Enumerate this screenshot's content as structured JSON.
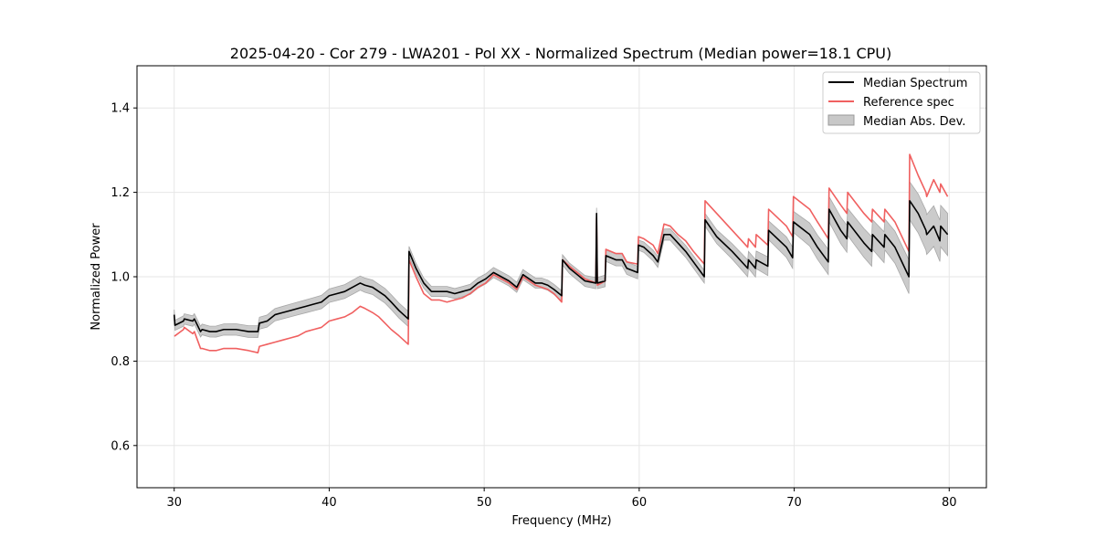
{
  "chart_data": {
    "type": "line",
    "title": "2025-04-20 - Cor 279 - LWA201 - Pol XX - Normalized Spectrum (Median power=18.1 CPU)",
    "xlabel": "Frequency (MHz)",
    "ylabel": "Normalized Power",
    "xlim": [
      27.6,
      82.4
    ],
    "ylim": [
      0.5,
      1.5
    ],
    "xticks": [
      30,
      40,
      50,
      60,
      70,
      80
    ],
    "xtick_labels": [
      "30",
      "40",
      "50",
      "60",
      "70",
      "80"
    ],
    "yticks": [
      0.6,
      0.8,
      1.0,
      1.2,
      1.4
    ],
    "ytick_labels": [
      "0.6",
      "0.8",
      "1.0",
      "1.2",
      "1.4"
    ],
    "grid": true,
    "legend_position": "top-right",
    "legend": [
      "Median Spectrum",
      "Reference spec",
      "Median Abs. Dev."
    ],
    "series": [
      {
        "name": "Median Spectrum",
        "color": "#000000",
        "x": [
          30.0,
          30.05,
          30.6,
          30.65,
          31.2,
          31.3,
          31.7,
          31.8,
          32.3,
          32.7,
          33.2,
          34.0,
          34.8,
          35.4,
          35.5,
          36.0,
          36.5,
          37.0,
          37.5,
          38.0,
          38.5,
          39.0,
          39.5,
          40.0,
          40.5,
          41.0,
          41.5,
          42.0,
          42.3,
          42.8,
          43.2,
          43.6,
          44.0,
          44.5,
          45.1,
          45.15,
          45.6,
          46.1,
          46.6,
          47.1,
          47.6,
          48.1,
          48.6,
          49.1,
          49.6,
          50.1,
          50.6,
          51.1,
          51.6,
          52.1,
          52.5,
          52.9,
          53.3,
          53.7,
          54.1,
          54.5,
          55.0,
          55.05,
          55.5,
          56.0,
          56.5,
          57.2,
          57.25,
          57.3,
          57.8,
          57.85,
          58.5,
          58.9,
          59.2,
          59.9,
          59.95,
          60.3,
          60.9,
          61.2,
          61.6,
          62.0,
          62.5,
          63.0,
          63.5,
          64.2,
          64.25,
          65.0,
          66.0,
          67.0,
          67.05,
          67.5,
          67.55,
          68.3,
          68.35,
          69.5,
          69.9,
          69.95,
          71.0,
          71.5,
          72.2,
          72.25,
          73.0,
          73.4,
          73.45,
          74.5,
          75.0,
          75.05,
          75.8,
          75.85,
          76.5,
          77.4,
          77.45,
          78.0,
          78.5,
          78.55,
          79.0,
          79.4,
          79.45,
          79.9
        ],
        "values": [
          0.91,
          0.885,
          0.895,
          0.9,
          0.895,
          0.9,
          0.87,
          0.875,
          0.87,
          0.87,
          0.875,
          0.875,
          0.87,
          0.87,
          0.89,
          0.895,
          0.91,
          0.915,
          0.92,
          0.925,
          0.93,
          0.935,
          0.94,
          0.955,
          0.96,
          0.965,
          0.975,
          0.985,
          0.98,
          0.975,
          0.965,
          0.955,
          0.94,
          0.92,
          0.9,
          1.06,
          1.02,
          0.985,
          0.965,
          0.965,
          0.965,
          0.96,
          0.965,
          0.97,
          0.985,
          0.995,
          1.01,
          1.0,
          0.99,
          0.975,
          1.005,
          0.995,
          0.985,
          0.985,
          0.98,
          0.97,
          0.955,
          1.04,
          1.02,
          1.005,
          0.99,
          0.985,
          1.15,
          0.985,
          0.99,
          1.05,
          1.04,
          1.04,
          1.02,
          1.01,
          1.075,
          1.07,
          1.05,
          1.035,
          1.1,
          1.1,
          1.08,
          1.06,
          1.035,
          1.0,
          1.135,
          1.095,
          1.06,
          1.02,
          1.04,
          1.02,
          1.04,
          1.025,
          1.11,
          1.07,
          1.045,
          1.13,
          1.1,
          1.07,
          1.035,
          1.16,
          1.11,
          1.09,
          1.13,
          1.08,
          1.06,
          1.1,
          1.07,
          1.1,
          1.07,
          1.0,
          1.18,
          1.15,
          1.11,
          1.1,
          1.12,
          1.085,
          1.12,
          1.1
        ]
      },
      {
        "name": "Reference spec",
        "color": "#f06060",
        "x": [
          30.0,
          30.05,
          30.6,
          30.65,
          31.2,
          31.3,
          31.7,
          31.8,
          32.3,
          32.7,
          33.2,
          34.0,
          34.8,
          35.4,
          35.5,
          36.0,
          36.5,
          37.0,
          37.5,
          38.0,
          38.5,
          39.0,
          39.5,
          40.0,
          40.5,
          41.0,
          41.5,
          42.0,
          42.3,
          42.8,
          43.2,
          43.6,
          44.0,
          44.5,
          45.1,
          45.15,
          45.6,
          46.1,
          46.6,
          47.1,
          47.6,
          48.1,
          48.6,
          49.1,
          49.6,
          50.1,
          50.6,
          51.1,
          51.6,
          52.1,
          52.5,
          52.9,
          53.3,
          53.7,
          54.1,
          54.5,
          55.0,
          55.05,
          55.5,
          56.0,
          56.5,
          57.2,
          57.25,
          57.3,
          57.8,
          57.85,
          58.5,
          58.9,
          59.2,
          59.9,
          59.95,
          60.3,
          60.9,
          61.2,
          61.6,
          62.0,
          62.5,
          63.0,
          63.5,
          64.2,
          64.25,
          65.0,
          66.0,
          67.0,
          67.05,
          67.5,
          67.55,
          68.3,
          68.35,
          69.5,
          69.9,
          69.95,
          71.0,
          71.5,
          72.2,
          72.25,
          73.0,
          73.4,
          73.45,
          74.5,
          75.0,
          75.05,
          75.8,
          75.85,
          76.5,
          77.4,
          77.45,
          78.0,
          78.5,
          78.55,
          79.0,
          79.4,
          79.45,
          79.9
        ],
        "values": [
          0.86,
          0.86,
          0.875,
          0.88,
          0.865,
          0.87,
          0.83,
          0.83,
          0.825,
          0.825,
          0.83,
          0.83,
          0.825,
          0.82,
          0.835,
          0.84,
          0.845,
          0.85,
          0.855,
          0.86,
          0.87,
          0.875,
          0.88,
          0.895,
          0.9,
          0.905,
          0.915,
          0.93,
          0.925,
          0.915,
          0.905,
          0.89,
          0.875,
          0.86,
          0.84,
          1.04,
          1.0,
          0.96,
          0.945,
          0.945,
          0.94,
          0.945,
          0.95,
          0.96,
          0.975,
          0.985,
          1.005,
          0.995,
          0.985,
          0.97,
          1.0,
          0.99,
          0.98,
          0.975,
          0.97,
          0.96,
          0.94,
          1.04,
          1.025,
          1.01,
          0.995,
          0.985,
          1.14,
          0.98,
          0.99,
          1.065,
          1.055,
          1.055,
          1.035,
          1.03,
          1.095,
          1.09,
          1.075,
          1.055,
          1.125,
          1.12,
          1.1,
          1.085,
          1.06,
          1.03,
          1.18,
          1.15,
          1.11,
          1.07,
          1.09,
          1.07,
          1.1,
          1.075,
          1.16,
          1.12,
          1.095,
          1.19,
          1.16,
          1.13,
          1.09,
          1.21,
          1.17,
          1.15,
          1.2,
          1.15,
          1.13,
          1.16,
          1.13,
          1.16,
          1.13,
          1.06,
          1.29,
          1.24,
          1.2,
          1.19,
          1.23,
          1.2,
          1.22,
          1.19
        ]
      }
    ],
    "band": {
      "name": "Median Abs. Dev.",
      "color": "#c8c8c8",
      "x": [
        30.0,
        45.1,
        45.15,
        55.0,
        55.05,
        59.9,
        59.95,
        64.2,
        64.25,
        67.0,
        67.05,
        69.9,
        69.95,
        72.2,
        72.25,
        75.0,
        75.05,
        77.4,
        77.45,
        79.9
      ],
      "mad": [
        0.012,
        0.018,
        0.012,
        0.012,
        0.012,
        0.015,
        0.012,
        0.015,
        0.015,
        0.02,
        0.02,
        0.025,
        0.025,
        0.03,
        0.03,
        0.035,
        0.035,
        0.04,
        0.045,
        0.05
      ]
    }
  }
}
